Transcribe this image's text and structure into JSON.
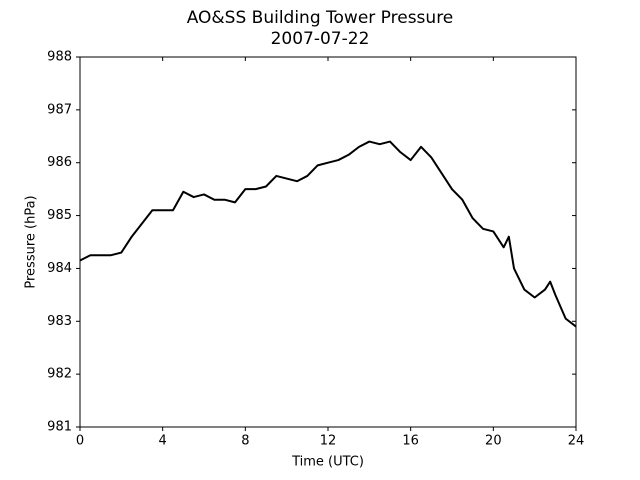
{
  "chart_data": {
    "type": "line",
    "title": "AO&SS Building Tower Pressure",
    "subtitle": "2007-07-22",
    "x_label": "Time (UTC)",
    "y_label": "Pressure (hPa)",
    "x": [
      0,
      0.5,
      1,
      1.5,
      2,
      2.5,
      3,
      3.5,
      4,
      4.5,
      5,
      5.5,
      6,
      6.5,
      7,
      7.5,
      8,
      8.5,
      9,
      9.5,
      10,
      10.5,
      11,
      11.5,
      12,
      12.5,
      13,
      13.5,
      14,
      14.5,
      15,
      15.5,
      16,
      16.5,
      17,
      17.5,
      18,
      18.5,
      19,
      19.5,
      20,
      20.5,
      20.75,
      21,
      21.5,
      22,
      22.5,
      22.75,
      23,
      23.5,
      24
    ],
    "series": [
      {
        "name": "Pressure",
        "color": "#000000",
        "values": [
          984.15,
          984.25,
          984.25,
          984.25,
          984.3,
          984.6,
          984.85,
          985.1,
          985.1,
          985.1,
          985.45,
          985.35,
          985.4,
          985.3,
          985.3,
          985.25,
          985.5,
          985.5,
          985.55,
          985.75,
          985.7,
          985.65,
          985.75,
          985.95,
          986.0,
          986.05,
          986.15,
          986.3,
          986.4,
          986.35,
          986.4,
          986.2,
          986.05,
          986.3,
          986.1,
          985.8,
          985.5,
          985.3,
          984.95,
          984.75,
          984.7,
          984.4,
          984.6,
          984.0,
          983.6,
          983.45,
          983.6,
          983.75,
          983.5,
          983.05,
          982.9
        ]
      }
    ],
    "xlim": [
      0,
      24
    ],
    "xticks": [
      0,
      4,
      8,
      12,
      16,
      20,
      24
    ],
    "ylim": [
      981,
      988
    ],
    "yticks": [
      981,
      982,
      983,
      984,
      985,
      986,
      987,
      988
    ]
  }
}
